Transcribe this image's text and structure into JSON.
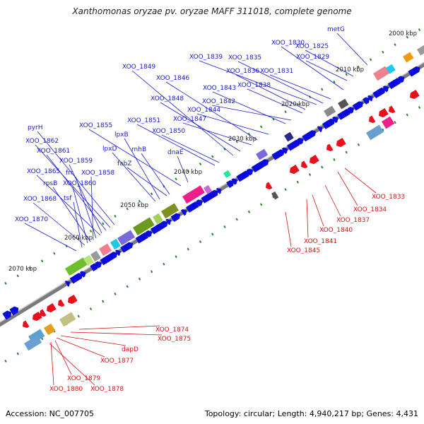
{
  "title": "Xanthomonas oryzae pv. oryzae MAFF 311018, complete genome",
  "footer": {
    "accession": "Accession: NC_007705",
    "stats": "Topology: circular; Length: 4,940,217 bp; Genes: 4,431"
  },
  "scale": [
    {
      "label": "2000 kbp"
    },
    {
      "label": "2010 kbp"
    },
    {
      "label": "2020 kbp"
    },
    {
      "label": "2030 kbp"
    },
    {
      "label": "2040 kbp"
    },
    {
      "label": "2050 kbp"
    },
    {
      "label": "2060 kbp"
    },
    {
      "label": "2070 kbp"
    }
  ],
  "upper_labels": [
    "metG",
    "XOO_1825",
    "XOO_1829",
    "XOO_1830",
    "XOO_1831",
    "XOO_1835",
    "XOO_1839",
    "XOO_1836",
    "XOO_1838",
    "XOO_1842",
    "XOO_1843",
    "XOO_1844",
    "XOO_1846",
    "XOO_1847",
    "XOO_1848",
    "XOO_1849",
    "XOO_1850",
    "XOO_1851",
    "XOO_1855",
    "dnaE",
    "rnhB",
    "fabZ",
    "lpxB",
    "lpxD",
    "pyrH",
    "XOO_1862",
    "XOO_1861",
    "XOO_1859",
    "XOO_1865",
    "frr",
    "XOO_1858",
    "rpsB",
    "XOO_1860",
    "XOO_1868",
    "tsf",
    "XOO_1870"
  ],
  "lower_labels": [
    "XOO_1833",
    "XOO_1834",
    "XOO_1837",
    "XOO_1840",
    "XOO_1841",
    "XOO_1845",
    "XOO_1874",
    "XOO_1875",
    "dapD",
    "XOO_1877",
    "XOO_1879",
    "XOO_1880",
    "XOO_1878"
  ],
  "colors": {
    "forward_gene": "#0a0adc",
    "reverse_gene": "#e8101a",
    "upper_label": "#1a1acc",
    "lower_label": "#d41414",
    "backbone": "#777777",
    "tick_green": "#2d7d2d"
  }
}
